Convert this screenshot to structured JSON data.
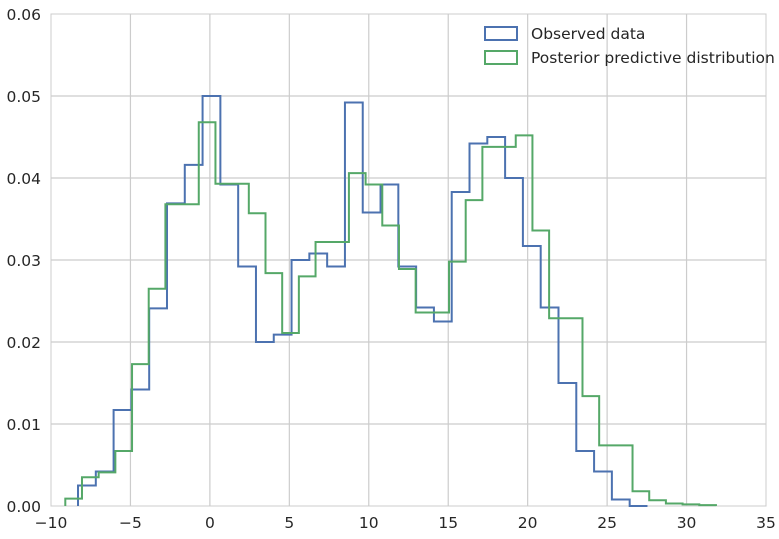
{
  "chart_data": {
    "type": "histogram",
    "title": "",
    "xlabel": "",
    "ylabel": "",
    "xlim": [
      -10,
      35
    ],
    "ylim": [
      0,
      0.06
    ],
    "xticks": [
      -10,
      -5,
      0,
      5,
      10,
      15,
      20,
      25,
      30,
      35
    ],
    "yticks": [
      0.0,
      0.01,
      0.02,
      0.03,
      0.04,
      0.05,
      0.06
    ],
    "xtick_labels": [
      "−10",
      "−5",
      "0",
      "5",
      "10",
      "15",
      "20",
      "25",
      "30",
      "35"
    ],
    "ytick_labels": [
      "0.00",
      "0.01",
      "0.02",
      "0.03",
      "0.04",
      "0.05",
      "0.06"
    ],
    "grid": true,
    "legend_position": "top-right",
    "series": [
      {
        "name": "Observed data",
        "color": "#4c72b0",
        "edges": [
          -8.3,
          -7.18,
          -6.06,
          -4.94,
          -3.82,
          -2.7,
          -1.58,
          -0.46,
          0.66,
          1.78,
          2.9,
          4.02,
          5.14,
          6.26,
          7.38,
          8.5,
          9.62,
          10.74,
          11.86,
          12.98,
          14.1,
          15.22,
          16.34,
          17.46,
          18.58,
          19.7,
          20.82,
          21.94,
          23.06,
          24.18,
          25.3,
          26.42,
          27.54
        ],
        "values": [
          0.0025,
          0.0042,
          0.0117,
          0.0142,
          0.0241,
          0.0369,
          0.0416,
          0.05,
          0.0392,
          0.0292,
          0.02,
          0.0209,
          0.03,
          0.0308,
          0.0292,
          0.0492,
          0.0358,
          0.0392,
          0.0292,
          0.0242,
          0.0225,
          0.0383,
          0.0442,
          0.045,
          0.04,
          0.0317,
          0.0242,
          0.015,
          0.0067,
          0.0042,
          0.0008,
          0.0
        ]
      },
      {
        "name": "Posterior predictive distribution",
        "color": "#55a868",
        "edges": [
          -9.1,
          -8.05,
          -7.0,
          -5.95,
          -4.9,
          -3.85,
          -2.8,
          -1.75,
          -0.7,
          0.35,
          1.4,
          2.45,
          3.5,
          4.55,
          5.6,
          6.65,
          7.7,
          8.75,
          9.8,
          10.85,
          11.9,
          12.95,
          14.0,
          15.05,
          16.1,
          17.15,
          18.2,
          19.25,
          20.3,
          21.35,
          22.4,
          23.45,
          24.5,
          25.55,
          26.6,
          27.65,
          28.7,
          29.75,
          30.8,
          31.85
        ],
        "values": [
          0.0009,
          0.0035,
          0.0041,
          0.0067,
          0.0173,
          0.0265,
          0.0368,
          0.0368,
          0.0468,
          0.0393,
          0.0393,
          0.0357,
          0.0284,
          0.0211,
          0.028,
          0.0322,
          0.0322,
          0.0406,
          0.0392,
          0.0342,
          0.0289,
          0.0236,
          0.0236,
          0.0298,
          0.0373,
          0.0438,
          0.0438,
          0.0452,
          0.0336,
          0.0229,
          0.0229,
          0.0134,
          0.0074,
          0.0074,
          0.0018,
          0.0007,
          0.0003,
          0.0002,
          0.0001
        ]
      }
    ]
  }
}
